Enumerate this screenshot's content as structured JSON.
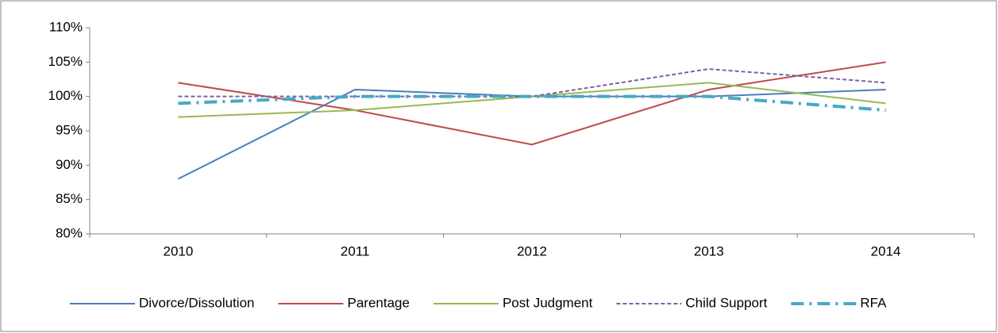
{
  "chart_data": {
    "type": "line",
    "categories": [
      "2010",
      "2011",
      "2012",
      "2013",
      "2014"
    ],
    "series": [
      {
        "name": "Divorce/Dissolution",
        "color": "#4a7ebb",
        "values": [
          88,
          101,
          100,
          100,
          101
        ]
      },
      {
        "name": "Parentage",
        "color": "#be4b48",
        "values": [
          102,
          98,
          93,
          101,
          105
        ]
      },
      {
        "name": "Post Judgment",
        "color": "#98b954",
        "values": [
          97,
          98,
          100,
          102,
          99
        ]
      },
      {
        "name": "Child Support",
        "color": "#7d60a0",
        "values": [
          100,
          100,
          100,
          104,
          102
        ]
      },
      {
        "name": "RFA",
        "color": "#46aac5",
        "values": [
          99,
          100,
          100,
          100,
          98
        ]
      }
    ],
    "ylim": [
      80,
      110
    ],
    "yticks": [
      {
        "value": 80,
        "label": "80%"
      },
      {
        "value": 85,
        "label": "85%"
      },
      {
        "value": 90,
        "label": "90%"
      },
      {
        "value": 95,
        "label": "95%"
      },
      {
        "value": 100,
        "label": "100%"
      },
      {
        "value": 105,
        "label": "105%"
      },
      {
        "value": 110,
        "label": "110%"
      }
    ],
    "grid": false,
    "legend": "bottom"
  }
}
